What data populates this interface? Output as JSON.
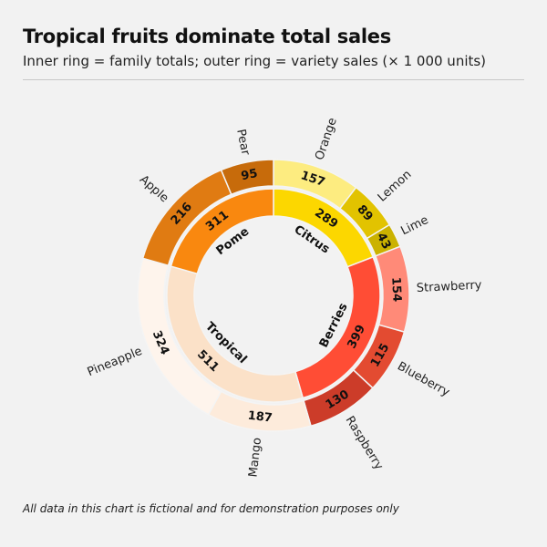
{
  "chart_data": {
    "type": "sunburst",
    "title": "Tropical fruits dominate total sales",
    "subtitle": "Inner ring = family totals; outer ring = variety sales (× 1 000 units)",
    "footer": "All data in this chart is fictional and for demonstration purposes only",
    "units": "× 1 000 units",
    "families": [
      {
        "name": "Citrus",
        "value": 289,
        "color": "#FCD700",
        "children": [
          {
            "name": "Orange",
            "value": 157,
            "color": "#FDEC80"
          },
          {
            "name": "Lemon",
            "value": 89,
            "color": "#E2C300"
          },
          {
            "name": "Lime",
            "value": 43,
            "color": "#CBB200"
          }
        ]
      },
      {
        "name": "Berries",
        "value": 399,
        "color": "#FF4D35",
        "children": [
          {
            "name": "Strawberry",
            "value": 154,
            "color": "#FF8A78"
          },
          {
            "name": "Blueberry",
            "value": 115,
            "color": "#E34B31"
          },
          {
            "name": "Raspberry",
            "value": 130,
            "color": "#CC3C29"
          }
        ]
      },
      {
        "name": "Tropical",
        "value": 511,
        "color": "#FBE1C8",
        "children": [
          {
            "name": "Mango",
            "value": 187,
            "color": "#FDEBDB"
          },
          {
            "name": "Pineapple",
            "value": 324,
            "color": "#FEF4EC"
          }
        ]
      },
      {
        "name": "Pome",
        "value": 311,
        "color": "#F9880F",
        "children": [
          {
            "name": "Apple",
            "value": 216,
            "color": "#E07B12"
          },
          {
            "name": "Pear",
            "value": 95,
            "color": "#C76B0B"
          }
        ]
      }
    ]
  }
}
